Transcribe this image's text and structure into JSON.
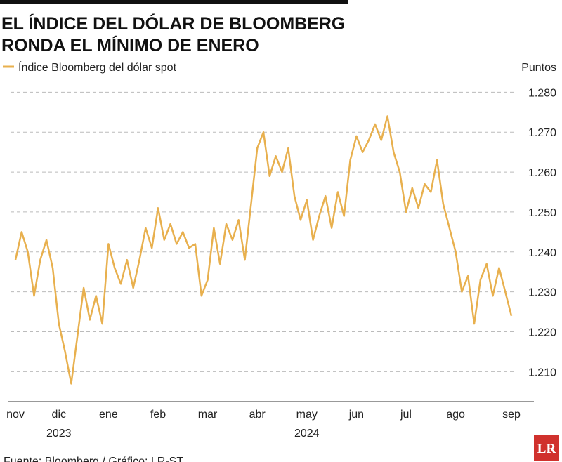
{
  "chart_data": {
    "type": "line",
    "title": [
      "EL ÍNDICE DEL DÓLAR DE BLOOMBERG",
      "RONDA EL MÍNIMO DE ENERO"
    ],
    "y_axis_label": "Puntos",
    "source": "Fuente: Bloomberg / Gráfico: LR-ST",
    "logo": "LR",
    "categories": [
      "nov",
      null,
      null,
      null,
      null,
      null,
      null,
      "dic",
      null,
      null,
      null,
      null,
      null,
      null,
      null,
      "ene",
      null,
      null,
      null,
      null,
      null,
      null,
      null,
      "feb",
      null,
      null,
      null,
      null,
      null,
      null,
      null,
      "mar",
      null,
      null,
      null,
      null,
      null,
      null,
      null,
      "abr",
      null,
      null,
      null,
      null,
      null,
      null,
      null,
      "may",
      null,
      null,
      null,
      null,
      null,
      null,
      null,
      "jun",
      null,
      null,
      null,
      null,
      null,
      null,
      null,
      "jul",
      null,
      null,
      null,
      null,
      null,
      null,
      null,
      "ago",
      null,
      null,
      null,
      null,
      null,
      null,
      null,
      null,
      "sep"
    ],
    "category_years": [
      null,
      null,
      null,
      null,
      null,
      null,
      null,
      "2023",
      null,
      null,
      null,
      null,
      null,
      null,
      null,
      null,
      null,
      null,
      null,
      null,
      null,
      null,
      null,
      null,
      null,
      null,
      null,
      null,
      null,
      null,
      null,
      null,
      null,
      null,
      null,
      null,
      null,
      null,
      null,
      null,
      null,
      null,
      null,
      null,
      null,
      null,
      null,
      "2024",
      null,
      null,
      null,
      null,
      null,
      null,
      null,
      null,
      null,
      null,
      null,
      null,
      null,
      null,
      null,
      null,
      null,
      null,
      null,
      null,
      null,
      null,
      null,
      null,
      null,
      null,
      null,
      null,
      null,
      null,
      null,
      null,
      null
    ],
    "series": [
      {
        "name": "Índice Bloomberg del dólar spot",
        "color": "#e8b04e",
        "values": [
          1.238,
          1.245,
          1.24,
          1.229,
          1.238,
          1.243,
          1.236,
          1.222,
          1.215,
          1.207,
          1.219,
          1.231,
          1.223,
          1.229,
          1.222,
          1.242,
          1.236,
          1.232,
          1.238,
          1.231,
          1.238,
          1.246,
          1.241,
          1.251,
          1.243,
          1.247,
          1.242,
          1.245,
          1.241,
          1.242,
          1.229,
          1.233,
          1.246,
          1.237,
          1.247,
          1.243,
          1.248,
          1.238,
          1.252,
          1.266,
          1.27,
          1.259,
          1.264,
          1.26,
          1.266,
          1.254,
          1.248,
          1.253,
          1.243,
          1.249,
          1.254,
          1.246,
          1.255,
          1.249,
          1.263,
          1.269,
          1.265,
          1.268,
          1.272,
          1.268,
          1.274,
          1.265,
          1.26,
          1.25,
          1.256,
          1.251,
          1.257,
          1.255,
          1.263,
          1.252,
          1.246,
          1.24,
          1.23,
          1.234,
          1.222,
          1.233,
          1.237,
          1.229,
          1.236,
          1.23,
          1.224
        ]
      }
    ],
    "ylim": [
      1.2025,
      1.282
    ],
    "yticks": [
      {
        "value": 1.21,
        "label": "1.210"
      },
      {
        "value": 1.22,
        "label": "1.220"
      },
      {
        "value": 1.23,
        "label": "1.230"
      },
      {
        "value": 1.24,
        "label": "1.240"
      },
      {
        "value": 1.25,
        "label": "1.250"
      },
      {
        "value": 1.26,
        "label": "1.260"
      },
      {
        "value": 1.27,
        "label": "1.270"
      },
      {
        "value": 1.28,
        "label": "1.280"
      }
    ],
    "grid": true
  }
}
